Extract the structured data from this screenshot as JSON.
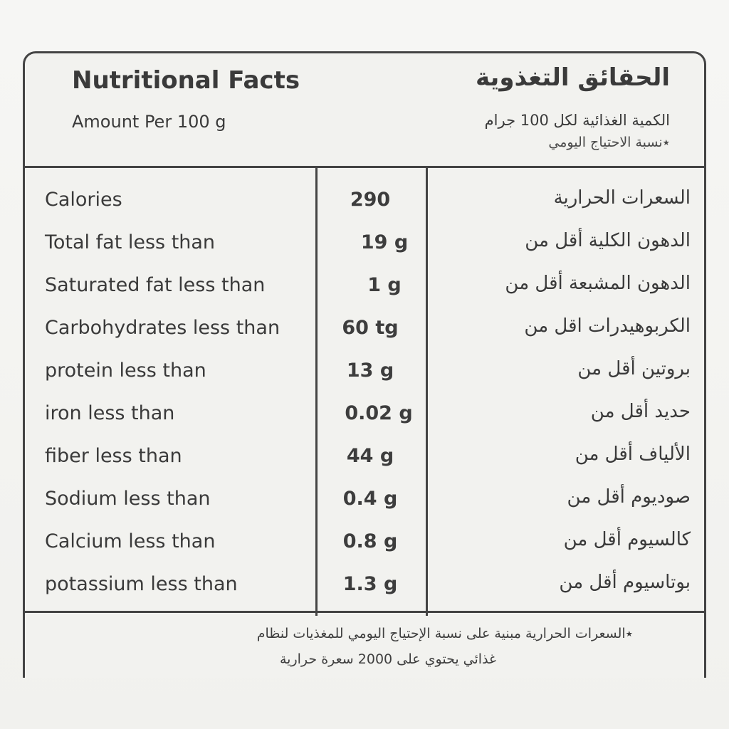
{
  "header": {
    "title_en": "Nutritional Facts",
    "amount_en": "Amount Per 100 g",
    "title_ar": "الحقائق التغذوية",
    "amount_ar": "الكمية الغذائية لكل 100 جرام",
    "note_ar": "٭نسبة الاحتياج اليومي"
  },
  "rows": [
    {
      "en": "Calories",
      "value": "290",
      "ar": "السعرات الحرارية"
    },
    {
      "en": "Total fat less than",
      "value": "19 g",
      "ar": "الدهون الكلية أقل من"
    },
    {
      "en": "Saturated fat less than",
      "value": "1 g",
      "ar": "الدهون المشبعة أقل من"
    },
    {
      "en": "Carbohydrates less than",
      "value": "60 tg",
      "ar": "الكربوهيدرات اقل من"
    },
    {
      "en": "protein less than",
      "value": "13 g",
      "ar": "بروتين أقل من"
    },
    {
      "en": "iron less than",
      "value": "0.02 g",
      "ar": "حديد أقل من"
    },
    {
      "en": "fiber less than",
      "value": "44 g",
      "ar": "الألياف أقل من"
    },
    {
      "en": "Sodium less than",
      "value": "0.4 g",
      "ar": "صوديوم أقل من"
    },
    {
      "en": "Calcium less than",
      "value": "0.8 g",
      "ar": "كالسيوم أقل من"
    },
    {
      "en": "potassium less than",
      "value": "1.3 g",
      "ar": "بوتاسيوم أقل من"
    }
  ],
  "footer": {
    "line1": "٭السعرات الحرارية مبنية على نسبة الإحتياج اليومي للمغذيات لنظام",
    "line2": "غذائي يحتوي على 2000 سعرة حرارية"
  }
}
